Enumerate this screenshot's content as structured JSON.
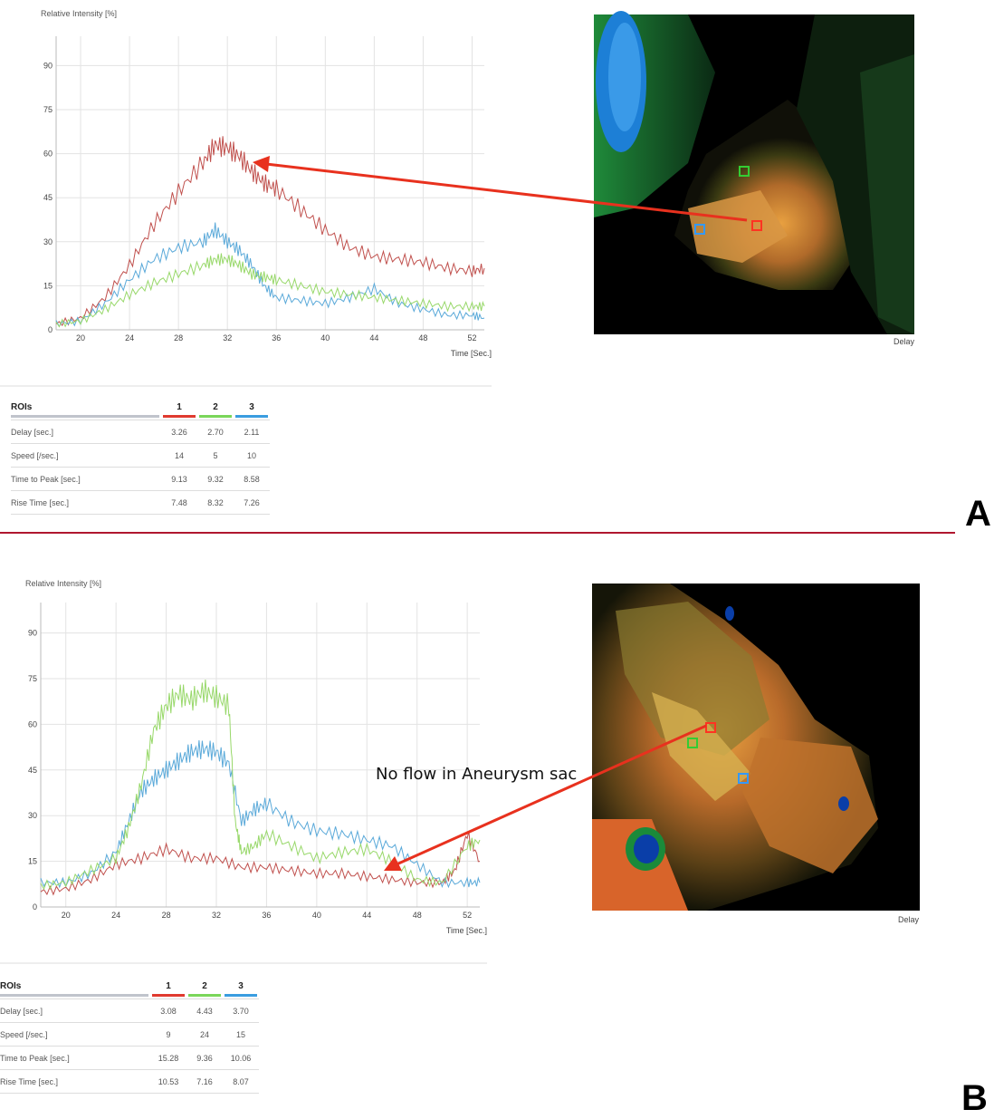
{
  "chart_data": [
    {
      "type": "line",
      "panel_label": "A",
      "title": "",
      "ylabel": "Relative Intensity [%]",
      "xlabel": "Time [Sec.]",
      "xlim": [
        18,
        53
      ],
      "ylim": [
        0,
        100
      ],
      "xticks": [
        "20",
        "24",
        "28",
        "32",
        "36",
        "40",
        "44",
        "48",
        "52"
      ],
      "yticks": [
        "0",
        "15",
        "30",
        "45",
        "60",
        "75",
        "90"
      ],
      "grid": true,
      "series": [
        {
          "color": "#c0504d",
          "x": [
            18,
            20,
            22,
            24,
            26,
            28,
            30,
            31,
            32,
            33,
            34,
            35,
            36,
            38,
            40,
            42,
            44,
            46,
            48,
            50,
            52,
            53
          ],
          "y": [
            2,
            4,
            11,
            22,
            36,
            47,
            57,
            63,
            62,
            59,
            54,
            50,
            48,
            41,
            34,
            28,
            25,
            24,
            23,
            21,
            20,
            21
          ]
        },
        {
          "color": "#5aa9d9",
          "x": [
            18,
            20,
            22,
            24,
            26,
            28,
            30,
            31,
            32,
            33,
            34,
            35,
            36,
            38,
            40,
            42,
            44,
            46,
            48,
            50,
            52,
            53
          ],
          "y": [
            2,
            3,
            9,
            17,
            24,
            28,
            30,
            34,
            30,
            27,
            22,
            15,
            11,
            10,
            9,
            11,
            14,
            9,
            7,
            5,
            5,
            4
          ]
        },
        {
          "color": "#98d86a",
          "x": [
            18,
            20,
            22,
            24,
            26,
            28,
            30,
            31,
            32,
            33,
            34,
            35,
            36,
            38,
            40,
            42,
            44,
            46,
            48,
            50,
            52,
            53
          ],
          "y": [
            2,
            3,
            7,
            12,
            16,
            19,
            22,
            24,
            24,
            22,
            19,
            18,
            17,
            15,
            13,
            12,
            11,
            10,
            9,
            8,
            8,
            8
          ]
        }
      ],
      "heatmap_label": "Delay",
      "roi_markers": [
        {
          "color": "#33cc33"
        },
        {
          "color": "#ff3322"
        },
        {
          "color": "#3399ff"
        }
      ],
      "table": {
        "header": "ROIs",
        "columns": [
          {
            "label": "1",
            "color": "#e03a2f"
          },
          {
            "label": "2",
            "color": "#7ad65a"
          },
          {
            "label": "3",
            "color": "#3a9de0"
          }
        ],
        "rows": [
          {
            "label": "Delay [sec.]",
            "values": [
              "3.26",
              "2.70",
              "2.11"
            ]
          },
          {
            "label": "Speed [/sec.]",
            "values": [
              "14",
              "5",
              "10"
            ]
          },
          {
            "label": "Time to Peak [sec.]",
            "values": [
              "9.13",
              "9.32",
              "8.58"
            ]
          },
          {
            "label": "Rise Time [sec.]",
            "values": [
              "7.48",
              "8.32",
              "7.26"
            ]
          }
        ]
      }
    },
    {
      "type": "line",
      "panel_label": "B",
      "title": "",
      "ylabel": "Relative Intensity [%]",
      "xlabel": "Time [Sec.]",
      "xlim": [
        18,
        53
      ],
      "ylim": [
        0,
        100
      ],
      "xticks": [
        "20",
        "24",
        "28",
        "32",
        "36",
        "40",
        "44",
        "48",
        "52"
      ],
      "yticks": [
        "0",
        "15",
        "30",
        "45",
        "60",
        "75",
        "90"
      ],
      "grid": true,
      "annotation": "No flow in Aneurysm sac",
      "series": [
        {
          "color": "#c0504d",
          "x": [
            18,
            20,
            22,
            24,
            26,
            28,
            30,
            32,
            34,
            36,
            38,
            40,
            42,
            44,
            46,
            48,
            50,
            51,
            52,
            53
          ],
          "y": [
            5,
            6,
            9,
            14,
            16,
            19,
            16,
            16,
            13,
            13,
            12,
            11,
            11,
            10,
            9,
            8,
            8,
            12,
            24,
            15
          ]
        },
        {
          "color": "#5aa9d9",
          "x": [
            18,
            20,
            22,
            24,
            25,
            26,
            27,
            28,
            29,
            30,
            31,
            32,
            33,
            34,
            35,
            36,
            38,
            40,
            42,
            44,
            46,
            48,
            50,
            52,
            53
          ],
          "y": [
            8,
            8,
            11,
            18,
            28,
            38,
            42,
            45,
            48,
            51,
            52,
            51,
            47,
            28,
            32,
            34,
            28,
            25,
            24,
            22,
            20,
            14,
            8,
            8,
            8
          ]
        },
        {
          "color": "#98d86a",
          "x": [
            18,
            20,
            22,
            24,
            25,
            26,
            27,
            28,
            29,
            30,
            31,
            32,
            33,
            33.5,
            34,
            35,
            36,
            38,
            40,
            42,
            44,
            46,
            48,
            50,
            52,
            53
          ],
          "y": [
            7,
            8,
            12,
            16,
            26,
            40,
            58,
            66,
            70,
            68,
            71,
            69,
            66,
            28,
            18,
            20,
            24,
            20,
            16,
            18,
            19,
            15,
            9,
            8,
            20,
            22
          ]
        }
      ],
      "heatmap_label": "Delay",
      "roi_markers": [
        {
          "color": "#ff3322"
        },
        {
          "color": "#33cc33"
        },
        {
          "color": "#3399ff"
        }
      ],
      "table": {
        "header": "ROIs",
        "columns": [
          {
            "label": "1",
            "color": "#e03a2f"
          },
          {
            "label": "2",
            "color": "#7ad65a"
          },
          {
            "label": "3",
            "color": "#3a9de0"
          }
        ],
        "rows": [
          {
            "label": "Delay [sec.]",
            "values": [
              "3.08",
              "4.43",
              "3.70"
            ]
          },
          {
            "label": "Speed [/sec.]",
            "values": [
              "9",
              "24",
              "15"
            ]
          },
          {
            "label": "Time to Peak [sec.]",
            "values": [
              "15.28",
              "9.36",
              "10.06"
            ]
          },
          {
            "label": "Rise Time [sec.]",
            "values": [
              "10.53",
              "7.16",
              "8.07"
            ]
          }
        ]
      }
    }
  ]
}
